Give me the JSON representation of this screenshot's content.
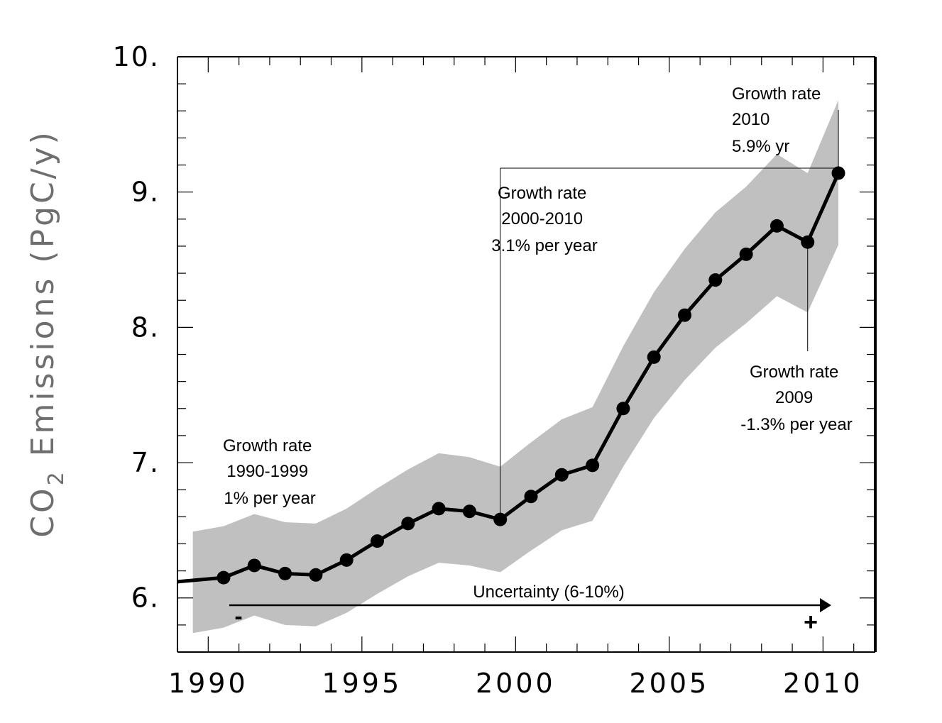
{
  "chart_data": {
    "type": "line",
    "x": [
      1990,
      1991,
      1992,
      1993,
      1994,
      1995,
      1996,
      1997,
      1998,
      1999,
      2000,
      2001,
      2002,
      2003,
      2004,
      2005,
      2006,
      2007,
      2008,
      2009,
      2010
    ],
    "series": [
      {
        "values": [
          6.15,
          6.24,
          6.18,
          6.17,
          6.28,
          6.42,
          6.55,
          6.66,
          6.64,
          6.58,
          6.75,
          6.91,
          6.98,
          7.4,
          7.78,
          8.09,
          8.35,
          8.54,
          8.75,
          8.63,
          9.14
        ]
      }
    ],
    "uncertainty_band": {
      "x": [
        1989,
        1990,
        1991,
        1992,
        1993,
        1994,
        1995,
        1996,
        1997,
        1998,
        1999,
        2000,
        2001,
        2002,
        2003,
        2004,
        2005,
        2006,
        2007,
        2008,
        2009,
        2010
      ],
      "upper": [
        6.49,
        6.53,
        6.62,
        6.56,
        6.55,
        6.66,
        6.81,
        6.95,
        7.07,
        7.04,
        6.97,
        7.15,
        7.32,
        7.41,
        7.86,
        8.26,
        8.58,
        8.85,
        9.04,
        9.28,
        9.14,
        9.68
      ],
      "lower": [
        5.74,
        5.78,
        5.87,
        5.8,
        5.79,
        5.89,
        6.03,
        6.16,
        6.26,
        6.24,
        6.19,
        6.35,
        6.5,
        6.57,
        6.97,
        7.33,
        7.61,
        7.85,
        8.03,
        8.23,
        8.11,
        8.61
      ]
    },
    "xlabel": "",
    "ylabel_main": "CO",
    "ylabel_sub": "2",
    "ylabel_rest": " Emissions (PgC/y)",
    "xlim": [
      1989,
      2011.7
    ],
    "ylim": [
      5.6,
      10.0
    ],
    "x_ticks": [
      "1990",
      "1995",
      "2000",
      "2005",
      "2010"
    ],
    "y_ticks": [
      "6.",
      "7.",
      "8.",
      "9.",
      "10."
    ],
    "grid": false,
    "colors": {
      "line": "#000000",
      "band": "#c0c0c0",
      "axes": "#000000"
    },
    "annotations": {
      "growth_1990s": [
        "Growth rate",
        "1990-1999",
        "1% per year"
      ],
      "growth_2000s": [
        "Growth rate",
        "2000-2010",
        "3.1% per year"
      ],
      "growth_2010": [
        "Growth rate",
        "2010",
        "5.9% yr"
      ],
      "growth_2009": [
        "Growth rate",
        "2009",
        "-1.3% per year"
      ],
      "uncertainty": "Uncertainty (6-10%)",
      "minus_sign": "-",
      "plus_sign": "+"
    }
  }
}
